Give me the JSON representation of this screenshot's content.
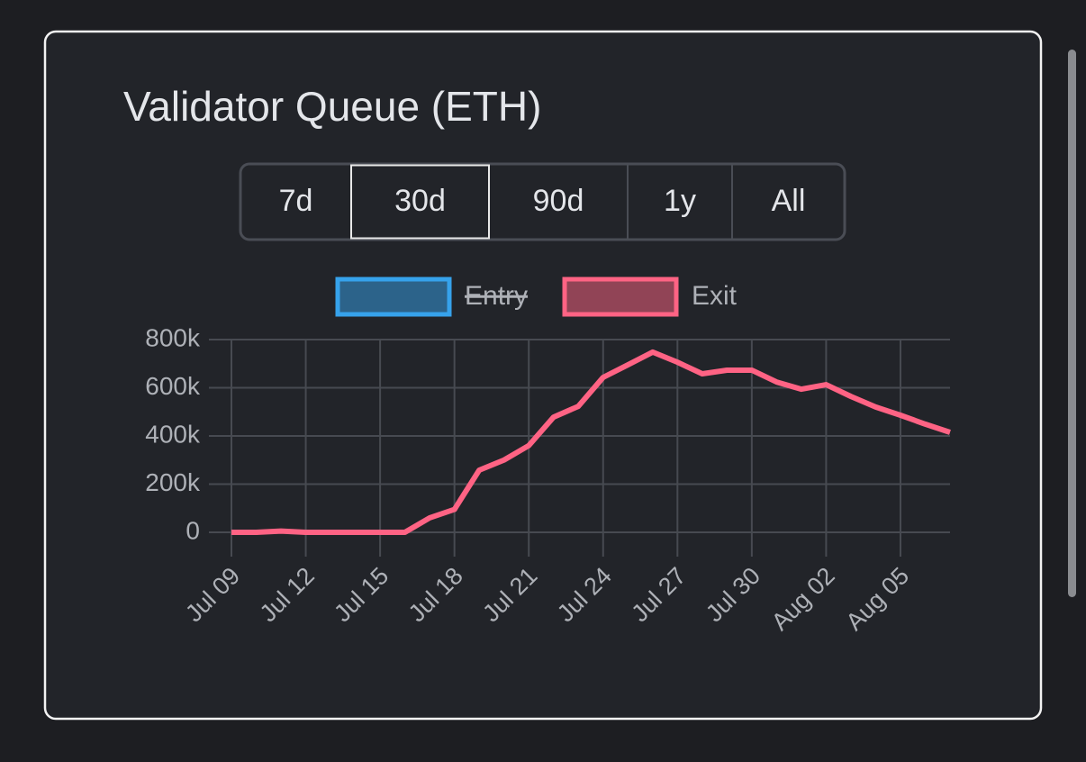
{
  "buttons": [
    "7d",
    "30d",
    "90d",
    "1y",
    "All"
  ],
  "selected_button": "30d",
  "chart_data": {
    "type": "line",
    "title": "Validator Queue (ETH)",
    "categories": [
      "Jul 09",
      null,
      null,
      "Jul 12",
      null,
      null,
      "Jul 15",
      null,
      null,
      "Jul 18",
      null,
      null,
      "Jul 21",
      null,
      null,
      "Jul 24",
      null,
      null,
      "Jul 27",
      null,
      null,
      "Jul 30",
      null,
      null,
      "Aug 02",
      null,
      null,
      "Aug 05",
      null,
      null
    ],
    "series": [
      {
        "name": "Entry",
        "color": "#36a2eb",
        "hidden": true,
        "values": [
          null,
          null,
          null,
          null,
          null,
          null,
          null,
          null,
          null,
          null,
          null,
          null,
          null,
          null,
          null,
          null,
          null,
          null,
          null,
          null,
          null,
          null,
          null,
          null,
          null,
          null,
          null,
          null,
          null,
          null
        ]
      },
      {
        "name": "Exit",
        "color": "#ff6384",
        "hidden": false,
        "values": [
          0,
          0,
          5000,
          0,
          0,
          0,
          0,
          0,
          60000,
          95000,
          258000,
          300000,
          360000,
          478000,
          523000,
          643000,
          695000,
          748000,
          706000,
          658000,
          673000,
          673000,
          624000,
          594000,
          613000,
          564000,
          520000,
          486000,
          449000,
          415000
        ]
      }
    ],
    "ylim": [
      0,
      800000
    ],
    "yticks": [
      0,
      {
        "value": 200000,
        "label": "200k"
      },
      {
        "value": 400000,
        "label": "400k"
      },
      {
        "value": 600000,
        "label": "600k"
      },
      {
        "value": 800000,
        "label": "800k"
      }
    ],
    "grid": true,
    "legend": "top"
  }
}
